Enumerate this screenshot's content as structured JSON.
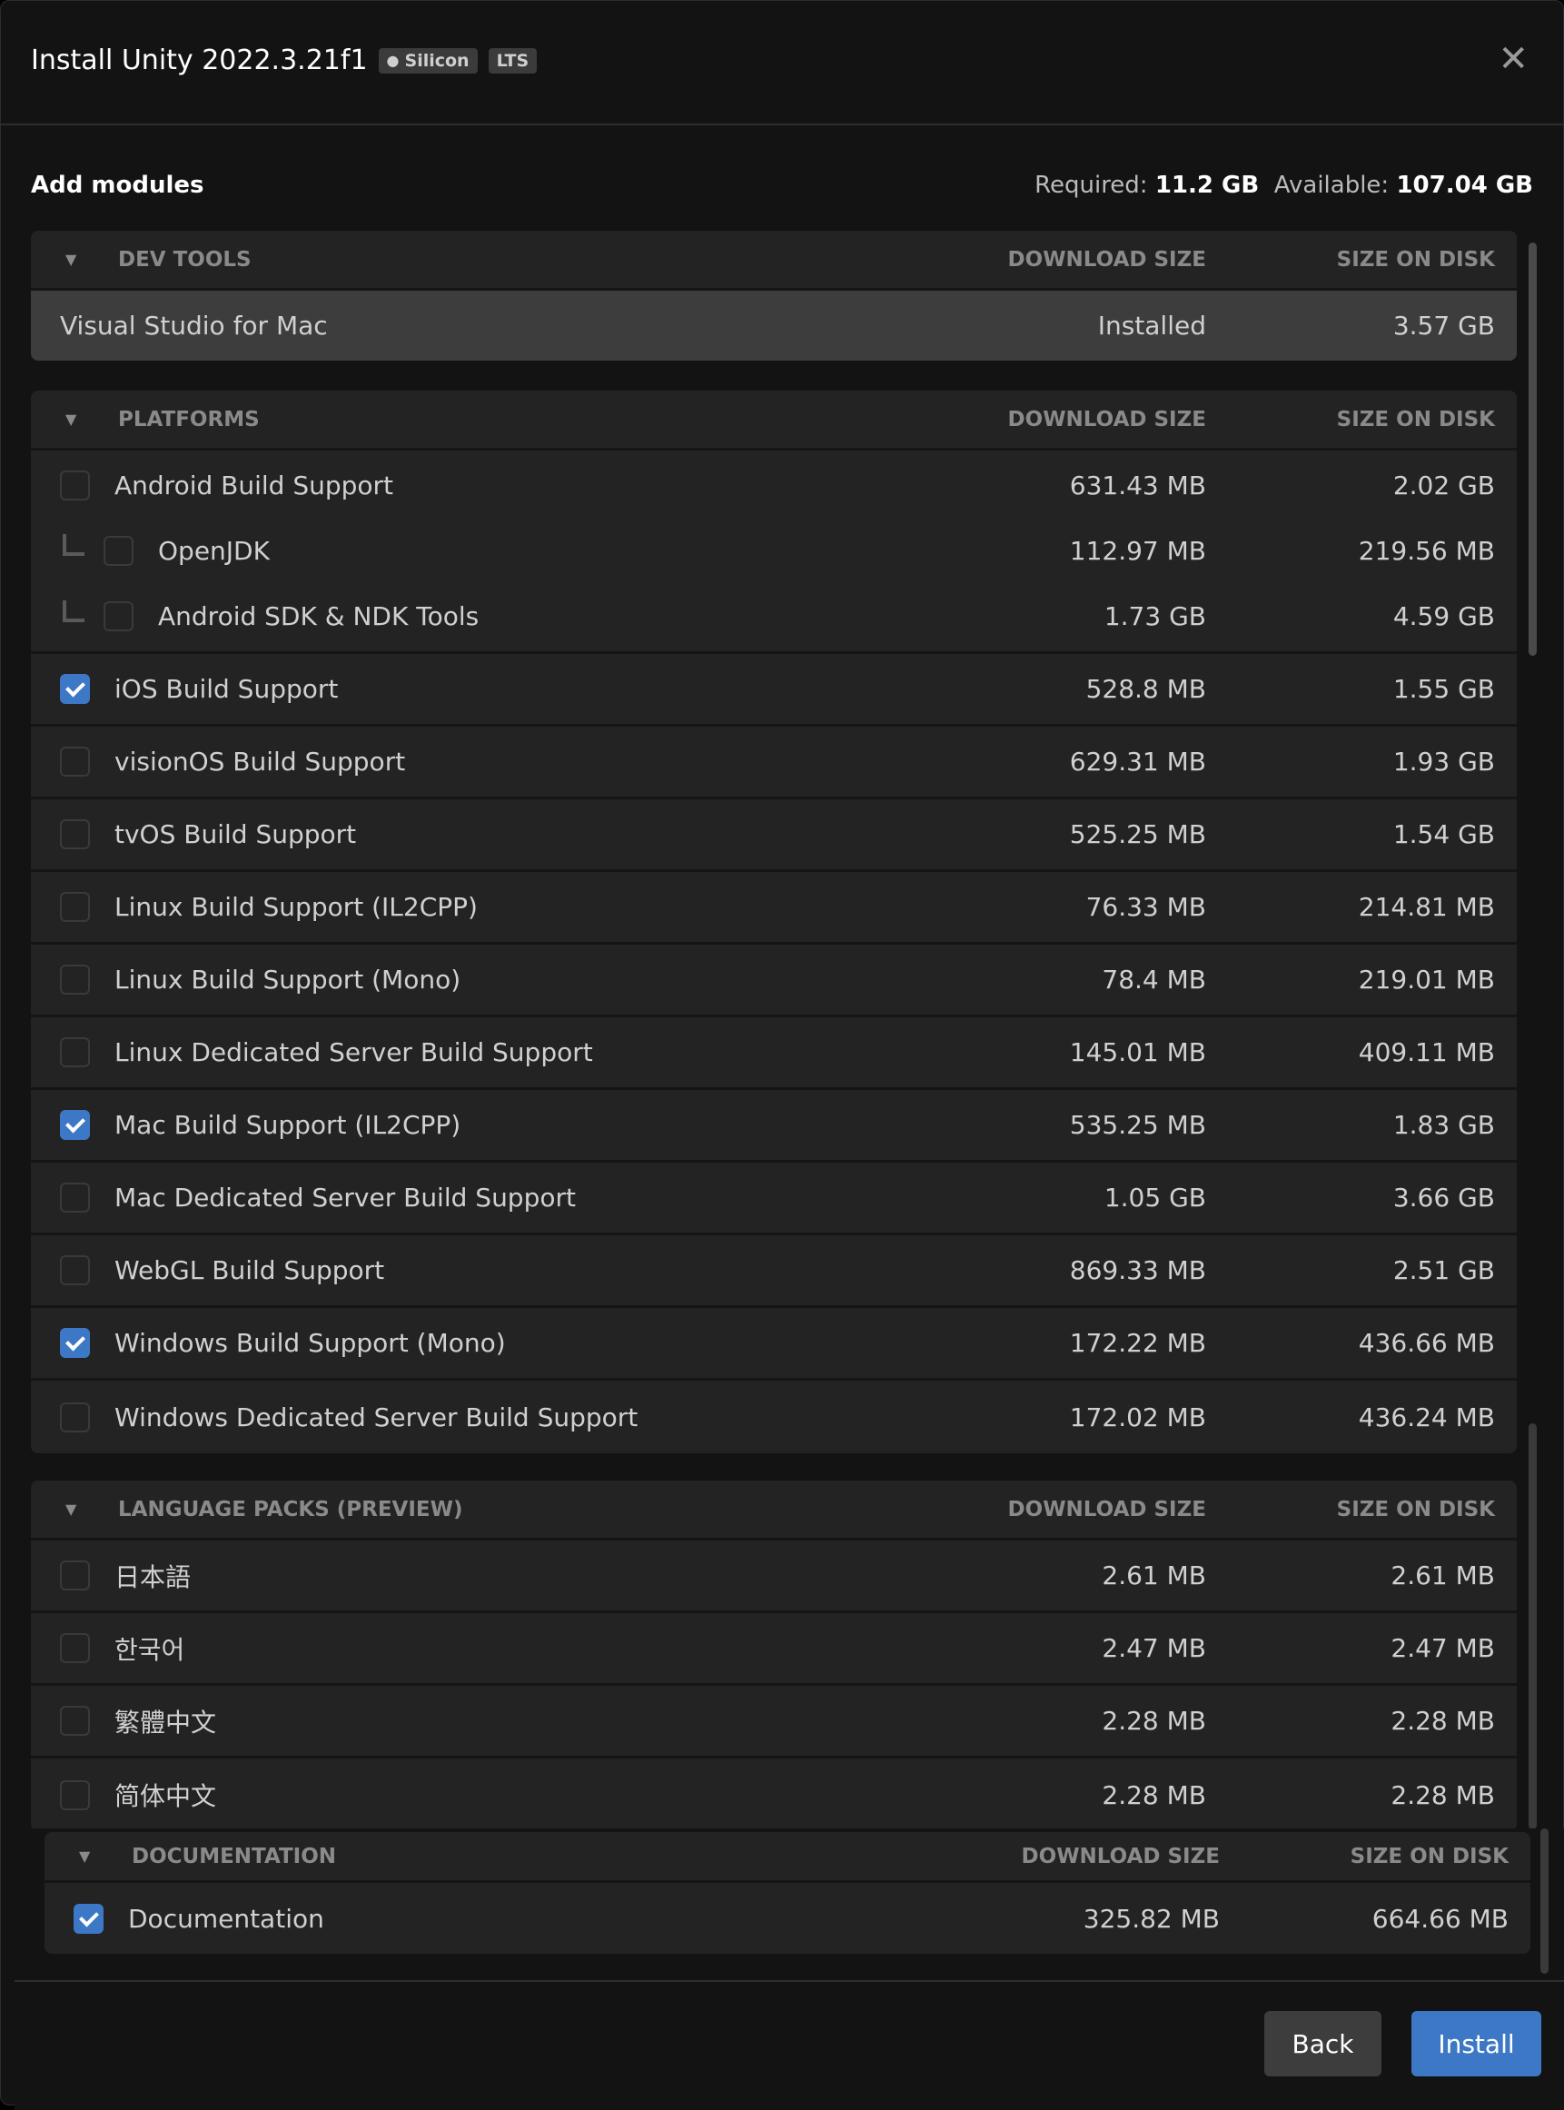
{
  "header": {
    "title": "Install Unity 2022.3.21f1",
    "badges": [
      {
        "icon": "apple-icon",
        "label": "Silicon"
      },
      {
        "label": "LTS"
      }
    ],
    "close_icon": "close-icon"
  },
  "summary": {
    "heading": "Add modules",
    "required_label": "Required:",
    "required_value": "11.2 GB",
    "available_label": "Available:",
    "available_value": "107.04 GB"
  },
  "columns": {
    "download": "DOWNLOAD SIZE",
    "disk": "SIZE ON DISK"
  },
  "sections": [
    {
      "title": "DEV TOOLS",
      "rows": [
        {
          "name": "Visual Studio for Mac",
          "download": "Installed",
          "disk": "3.57 GB",
          "installed": true
        }
      ]
    },
    {
      "title": "PLATFORMS",
      "rows": [
        {
          "name": "Android Build Support",
          "download": "631.43 MB",
          "disk": "2.02 GB",
          "checked": false
        },
        {
          "name": "OpenJDK",
          "download": "112.97 MB",
          "disk": "219.56 MB",
          "checked": false,
          "child": true
        },
        {
          "name": "Android SDK & NDK Tools",
          "download": "1.73 GB",
          "disk": "4.59 GB",
          "checked": false,
          "child": true
        },
        {
          "name": "iOS Build Support",
          "download": "528.8 MB",
          "disk": "1.55 GB",
          "checked": true
        },
        {
          "name": "visionOS Build Support",
          "download": "629.31 MB",
          "disk": "1.93 GB",
          "checked": false
        },
        {
          "name": "tvOS Build Support",
          "download": "525.25 MB",
          "disk": "1.54 GB",
          "checked": false
        },
        {
          "name": "Linux Build Support (IL2CPP)",
          "download": "76.33 MB",
          "disk": "214.81 MB",
          "checked": false
        },
        {
          "name": "Linux Build Support (Mono)",
          "download": "78.4 MB",
          "disk": "219.01 MB",
          "checked": false
        },
        {
          "name": "Linux Dedicated Server Build Support",
          "download": "145.01 MB",
          "disk": "409.11 MB",
          "checked": false
        },
        {
          "name": "Mac Build Support (IL2CPP)",
          "download": "535.25 MB",
          "disk": "1.83 GB",
          "checked": true
        },
        {
          "name": "Mac Dedicated Server Build Support",
          "download": "1.05 GB",
          "disk": "3.66 GB",
          "checked": false
        },
        {
          "name": "WebGL Build Support",
          "download": "869.33 MB",
          "disk": "2.51 GB",
          "checked": false
        },
        {
          "name": "Windows Build Support (Mono)",
          "download": "172.22 MB",
          "disk": "436.66 MB",
          "checked": true
        },
        {
          "name": "Windows Dedicated Server Build Support",
          "download": "172.02 MB",
          "disk": "436.24 MB",
          "checked": false
        }
      ]
    },
    {
      "title": "LANGUAGE PACKS (PREVIEW)",
      "rows": [
        {
          "name": "日本語",
          "download": "2.61 MB",
          "disk": "2.61 MB",
          "checked": false
        },
        {
          "name": "한국어",
          "download": "2.47 MB",
          "disk": "2.47 MB",
          "checked": false
        },
        {
          "name": "繁體中文",
          "download": "2.28 MB",
          "disk": "2.28 MB",
          "checked": false
        },
        {
          "name": "简体中文",
          "download": "2.28 MB",
          "disk": "2.28 MB",
          "checked": false
        }
      ]
    },
    {
      "title": "DOCUMENTATION",
      "rows": [
        {
          "name": "Documentation",
          "download": "325.82 MB",
          "disk": "664.66 MB",
          "checked": true
        }
      ]
    }
  ],
  "footer": {
    "back_label": "Back",
    "install_label": "Install"
  },
  "colors": {
    "accent": "#3d78c6",
    "background": "#131313",
    "section": "#232323",
    "installed_row": "#3d3d3d"
  }
}
